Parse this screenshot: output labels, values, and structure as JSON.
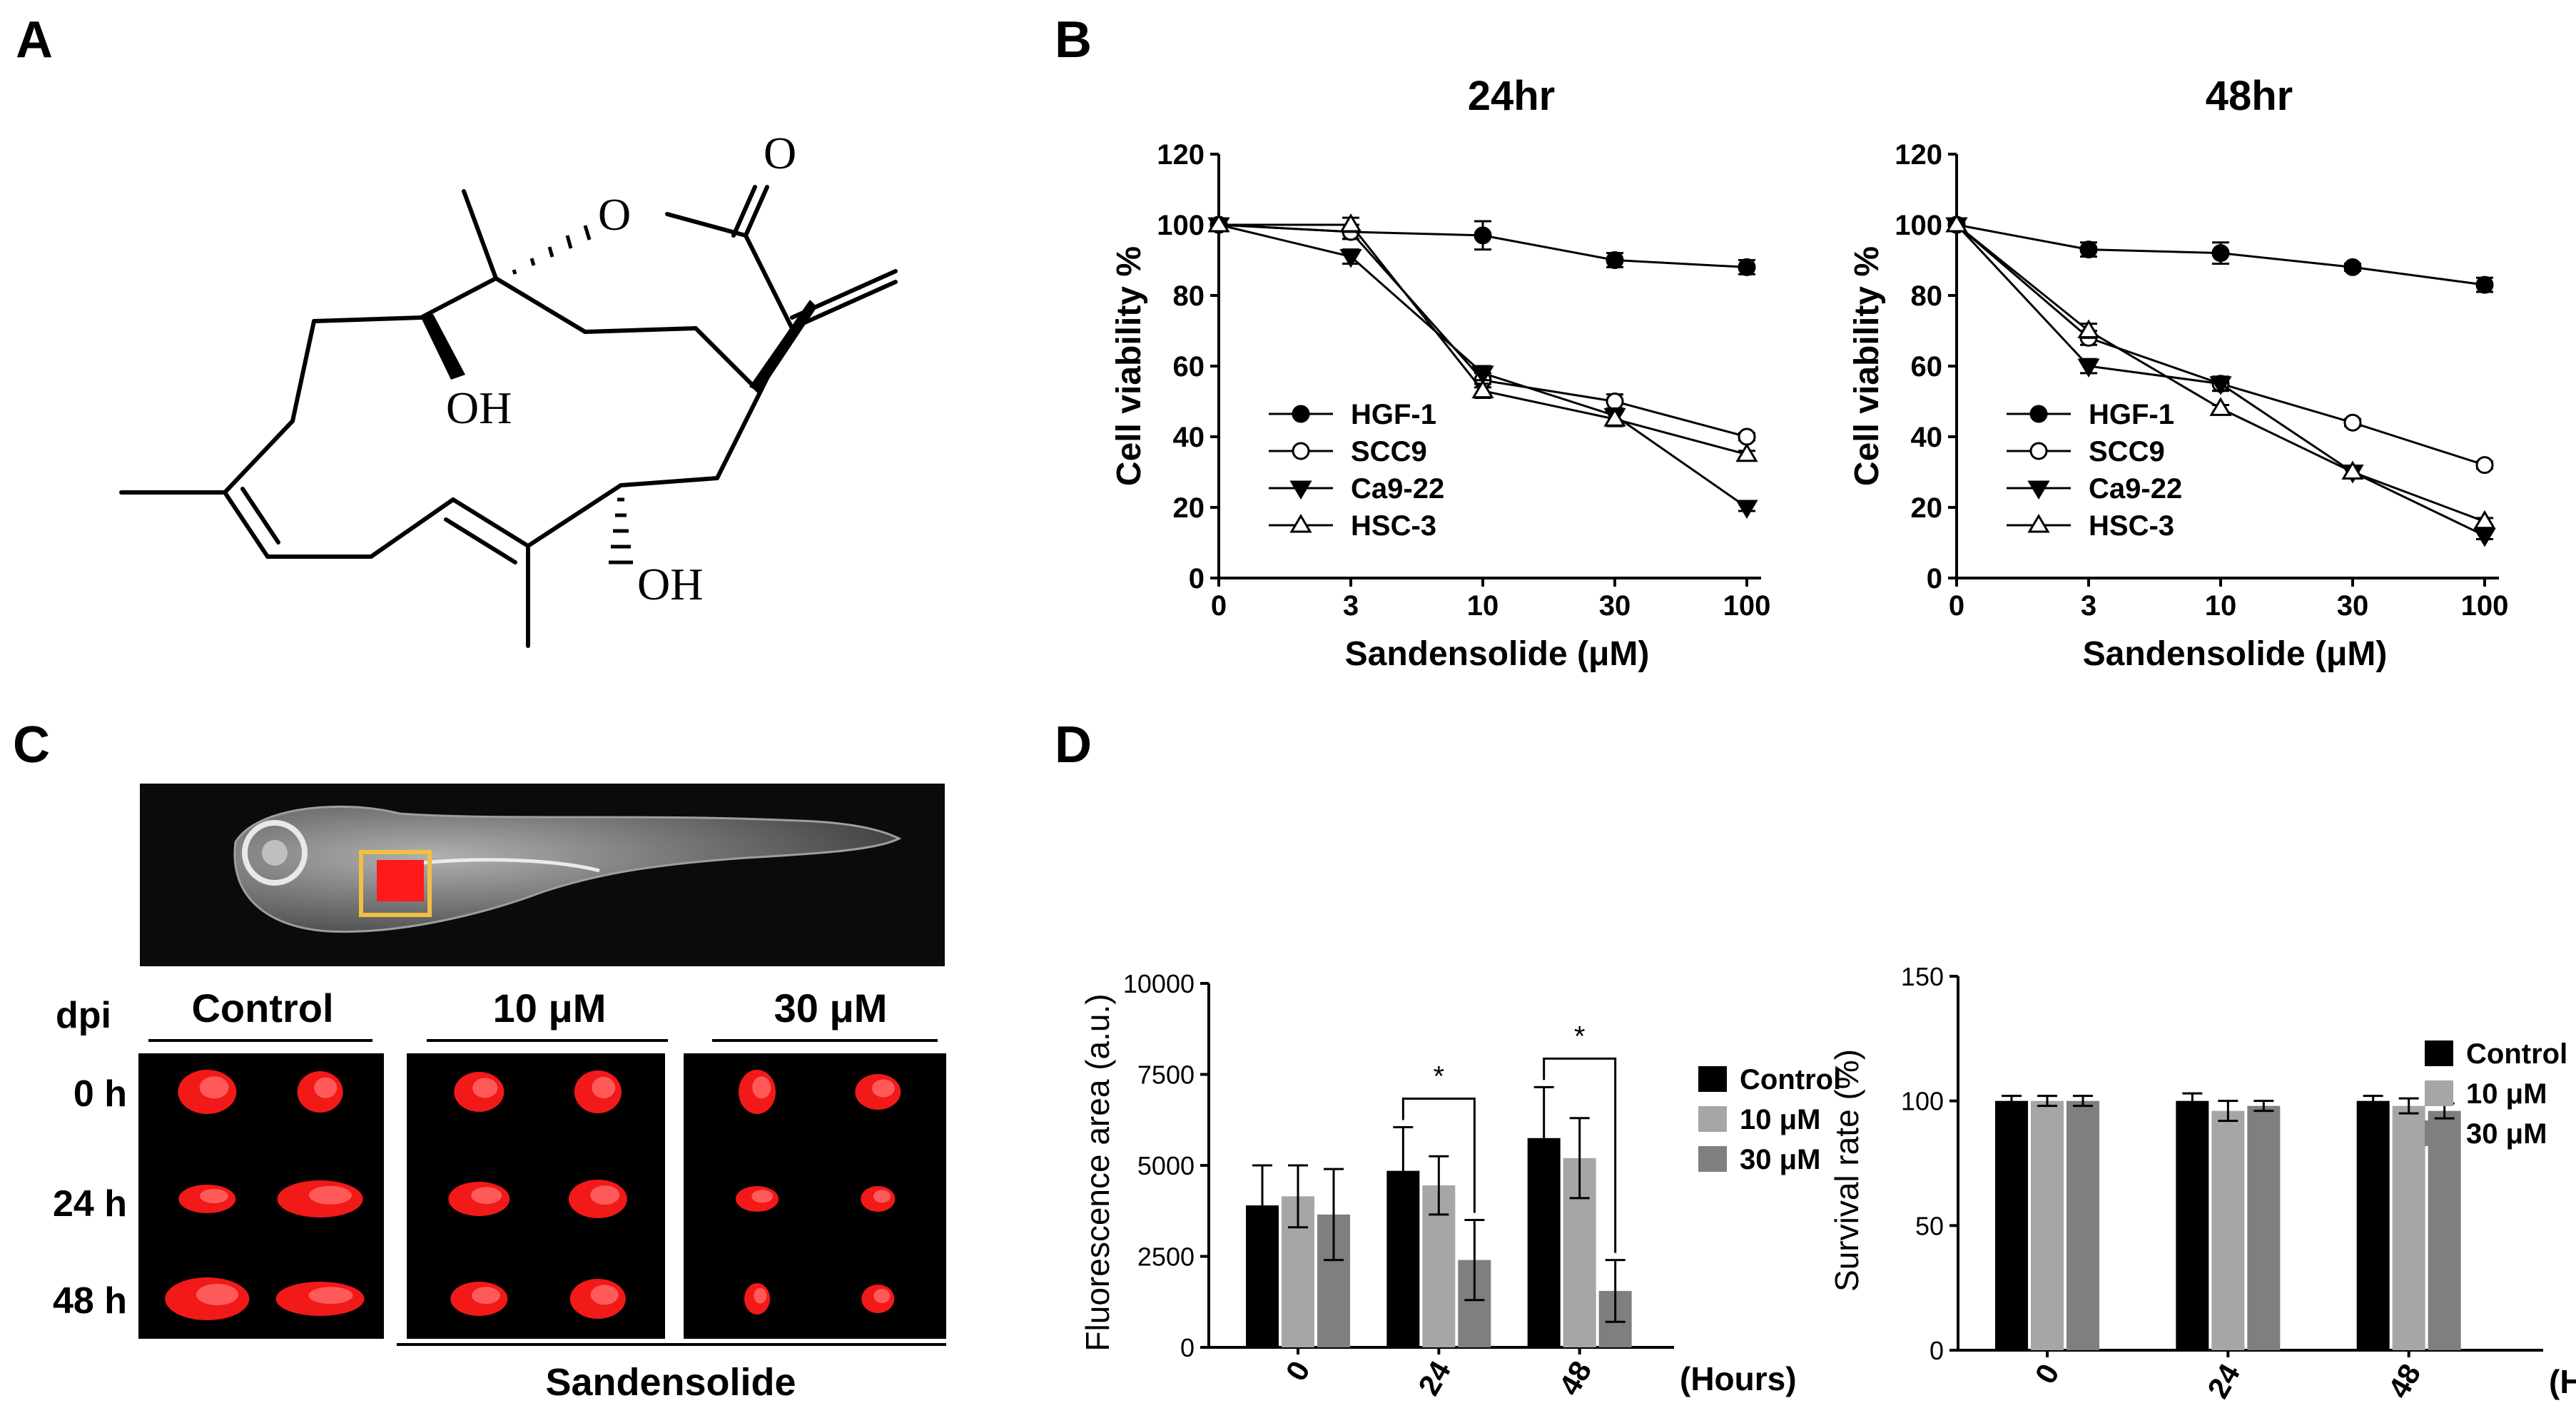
{
  "panels": {
    "A": {
      "letter": "A",
      "atoms": {
        "O_ring": "O",
        "O_carbonyl": "O",
        "OH_left": "OH",
        "OH_bottom": "OH"
      }
    },
    "B": {
      "letter": "B"
    },
    "C": {
      "letter": "C",
      "dpi_label": "dpi",
      "col_labels": [
        "Control",
        "10 μM",
        "30 μM"
      ],
      "row_labels": [
        "0 h",
        "24 h",
        "48 h"
      ],
      "group_label": "Sandensolide",
      "box_color": "#f2c040",
      "tumor_color": "#ff1a1a"
    },
    "D": {
      "letter": "D"
    }
  },
  "chart_data": [
    {
      "type": "line",
      "title": "24hr",
      "xlabel": "Sandensolide (μM)",
      "ylabel": "Cell viability %",
      "x": [
        0,
        3,
        10,
        30,
        100
      ],
      "x_tick_labels": [
        "0",
        "3",
        "10",
        "30",
        "100"
      ],
      "y_ticks": [
        "0",
        "20",
        "40",
        "60",
        "80",
        "100",
        "120"
      ],
      "ylim": [
        0,
        120
      ],
      "legend_position": "bottom-left",
      "series": [
        {
          "name": "HGF-1",
          "marker": "filled-circle",
          "values": [
            100,
            98,
            97,
            90,
            88
          ],
          "errors": [
            0,
            2,
            4,
            2,
            2
          ]
        },
        {
          "name": "SCC9",
          "marker": "open-circle",
          "values": [
            100,
            98,
            56,
            50,
            40
          ],
          "errors": [
            0,
            2,
            2,
            2,
            1
          ]
        },
        {
          "name": "Ca9-22",
          "marker": "filled-triangle-down",
          "values": [
            100,
            91,
            58,
            46,
            20
          ],
          "errors": [
            0,
            2,
            2,
            2,
            1
          ]
        },
        {
          "name": "HSC-3",
          "marker": "open-triangle",
          "values": [
            100,
            100,
            53,
            45,
            35
          ],
          "errors": [
            0,
            2,
            2,
            2,
            1
          ]
        }
      ]
    },
    {
      "type": "line",
      "title": "48hr",
      "xlabel": "Sandensolide (μM)",
      "ylabel": "Cell viability %",
      "x": [
        0,
        3,
        10,
        30,
        100
      ],
      "x_tick_labels": [
        "0",
        "3",
        "10",
        "30",
        "100"
      ],
      "y_ticks": [
        "0",
        "20",
        "40",
        "60",
        "80",
        "100",
        "120"
      ],
      "ylim": [
        0,
        120
      ],
      "legend_position": "bottom-left",
      "series": [
        {
          "name": "HGF-1",
          "marker": "filled-circle",
          "values": [
            100,
            93,
            92,
            88,
            83
          ],
          "errors": [
            0,
            2,
            3,
            1,
            2
          ]
        },
        {
          "name": "SCC9",
          "marker": "open-circle",
          "values": [
            100,
            68,
            55,
            44,
            32
          ],
          "errors": [
            0,
            2,
            2,
            1,
            1
          ]
        },
        {
          "name": "Ca9-22",
          "marker": "filled-triangle-down",
          "values": [
            100,
            60,
            55,
            30,
            12
          ],
          "errors": [
            0,
            2,
            2,
            1,
            1
          ]
        },
        {
          "name": "HSC-3",
          "marker": "open-triangle",
          "values": [
            100,
            70,
            48,
            30,
            16
          ],
          "errors": [
            0,
            2,
            1,
            1,
            1
          ]
        }
      ]
    },
    {
      "type": "bar",
      "ylabel": "Fluorescence area (a.u.)",
      "xlabel": "(Hours)",
      "categories": [
        "0",
        "24",
        "48"
      ],
      "y_ticks": [
        "0",
        "2500",
        "5000",
        "7500",
        "10000"
      ],
      "ylim": [
        0,
        10000
      ],
      "legend_position": "right",
      "series": [
        {
          "name": "Control",
          "color": "#000000",
          "values": [
            3900,
            4850,
            5750
          ],
          "errors": [
            1100,
            1200,
            1400
          ]
        },
        {
          "name": "10 μM",
          "color": "#a6a6a6",
          "values": [
            4150,
            4450,
            5200
          ],
          "errors": [
            850,
            800,
            1100
          ]
        },
        {
          "name": "30 μM",
          "color": "#7f7f7f",
          "values": [
            3650,
            2400,
            1550
          ],
          "errors": [
            1250,
            1100,
            850
          ]
        }
      ],
      "significance": [
        {
          "category": "24",
          "label": "*"
        },
        {
          "category": "48",
          "label": "*"
        }
      ]
    },
    {
      "type": "bar",
      "ylabel": "Survival rate (%)",
      "xlabel": "(Hours)",
      "categories": [
        "0",
        "24",
        "48"
      ],
      "y_ticks": [
        "0",
        "50",
        "100",
        "150"
      ],
      "ylim": [
        0,
        150
      ],
      "legend_position": "right",
      "series": [
        {
          "name": "Control",
          "color": "#000000",
          "values": [
            100,
            100,
            100
          ],
          "errors": [
            2,
            3,
            2
          ]
        },
        {
          "name": "10 μM",
          "color": "#a6a6a6",
          "values": [
            100,
            96,
            98
          ],
          "errors": [
            2,
            4,
            3
          ]
        },
        {
          "name": "30 μM",
          "color": "#7f7f7f",
          "values": [
            100,
            98,
            96
          ],
          "errors": [
            2,
            2,
            3
          ]
        }
      ]
    }
  ]
}
